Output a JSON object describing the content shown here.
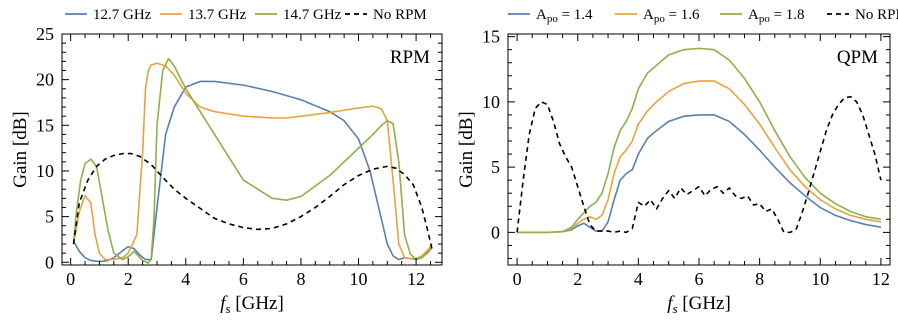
{
  "chart_data": [
    {
      "type": "line",
      "panel_label": "RPM",
      "xlabel_symbol": "f",
      "xlabel_sub": "s",
      "xlabel_unit": " [GHz]",
      "ylabel": "Gain [dB]",
      "xlim": [
        -0.3,
        12.9
      ],
      "ylim": [
        -0.3,
        25
      ],
      "xticks": [
        0,
        2,
        4,
        6,
        8,
        10,
        12
      ],
      "yticks": [
        0,
        5,
        10,
        15,
        20,
        25
      ],
      "legend_position": "top",
      "series": [
        {
          "name": "12.7 GHz",
          "color": "#5a7fb2",
          "dash": "",
          "x": [
            0.1,
            0.3,
            0.5,
            0.7,
            0.9,
            1.1,
            1.3,
            1.5,
            1.7,
            1.9,
            2.0,
            2.2,
            2.4,
            2.6,
            2.8,
            3.0,
            3.3,
            3.6,
            4.0,
            4.5,
            5,
            6,
            7,
            8,
            9,
            9.5,
            10,
            10.4,
            10.7,
            11.0,
            11.2,
            11.4,
            11.6,
            11.8,
            12.0,
            12.2,
            12.4,
            12.55
          ],
          "y": [
            2.3,
            1.2,
            0.5,
            0.2,
            0.1,
            0.1,
            0.2,
            0.5,
            1.0,
            1.5,
            1.7,
            1.5,
            0.8,
            0.3,
            0.3,
            6,
            14,
            17,
            19.2,
            19.8,
            19.8,
            19.4,
            18.7,
            17.8,
            16.5,
            15.5,
            13.5,
            10,
            6,
            2,
            0.7,
            0.3,
            0.5,
            0.4,
            0.3,
            0.5,
            1.2,
            2.0
          ]
        },
        {
          "name": "13.7 GHz",
          "color": "#e8a43c",
          "dash": "",
          "x": [
            0.1,
            0.3,
            0.5,
            0.7,
            0.85,
            1.0,
            1.2,
            1.5,
            1.8,
            2.0,
            2.3,
            2.5,
            2.6,
            2.7,
            2.8,
            3.0,
            3.3,
            3.6,
            4.0,
            4.5,
            5,
            6,
            7,
            7.5,
            8,
            9,
            10,
            10.5,
            10.8,
            11.0,
            11.2,
            11.4,
            11.6,
            11.8,
            12.0,
            12.2,
            12.4,
            12.55
          ],
          "y": [
            2.0,
            5.5,
            7.3,
            6.5,
            3.0,
            1.0,
            0.3,
            0.3,
            0.5,
            1.0,
            3.0,
            12,
            19,
            21,
            21.6,
            21.8,
            21.5,
            20.5,
            18.5,
            17,
            16.5,
            16,
            15.8,
            15.8,
            16,
            16.4,
            16.9,
            17.1,
            16.8,
            15.5,
            9,
            2,
            0.5,
            0.4,
            0.4,
            0.7,
            1.3,
            2.0
          ]
        },
        {
          "name": "14.7 GHz",
          "color": "#8fb04a",
          "dash": "",
          "x": [
            0.1,
            0.2,
            0.35,
            0.5,
            0.7,
            0.9,
            1.1,
            1.3,
            1.5,
            1.8,
            2.0,
            2.2,
            2.5,
            2.7,
            2.8,
            2.9,
            3.0,
            3.2,
            3.4,
            3.6,
            4,
            5,
            6,
            7,
            7.5,
            8,
            9,
            10,
            10.5,
            10.8,
            11.0,
            11.2,
            11.4,
            11.6,
            11.8,
            12.0,
            12.2,
            12.4,
            12.55
          ],
          "y": [
            2.0,
            5.5,
            9.0,
            10.8,
            11.3,
            10.5,
            7.0,
            3.5,
            1.0,
            0.3,
            0.6,
            1.2,
            0.2,
            -0.1,
            0.5,
            5,
            15,
            21,
            22.3,
            21.5,
            19,
            14,
            9,
            7,
            6.8,
            7.2,
            9.5,
            12.5,
            14,
            15,
            15.5,
            15.2,
            11,
            3,
            0.9,
            0.3,
            0.5,
            1.0,
            1.6
          ]
        },
        {
          "name": "No RPM",
          "color": "#000000",
          "dash": "5,4",
          "x": [
            0.1,
            0.3,
            0.6,
            0.9,
            1.2,
            1.5,
            1.8,
            2.1,
            2.4,
            2.8,
            3.2,
            3.6,
            4,
            4.5,
            5,
            5.5,
            6,
            6.5,
            7,
            7.5,
            8,
            8.5,
            9,
            9.5,
            10,
            10.5,
            11,
            11.3,
            11.6,
            11.9,
            12.2,
            12.4,
            12.55
          ],
          "y": [
            2.0,
            6.5,
            9.0,
            10.5,
            11.3,
            11.7,
            11.9,
            11.9,
            11.6,
            10.7,
            9.3,
            8.0,
            7.0,
            5.9,
            4.8,
            4.2,
            3.8,
            3.6,
            3.7,
            4.2,
            5.0,
            6.0,
            7.2,
            8.5,
            9.5,
            10.2,
            10.5,
            10.3,
            9.6,
            8.5,
            6,
            3.5,
            1.5
          ]
        }
      ]
    },
    {
      "type": "line",
      "panel_label": "QPM",
      "xlabel_symbol": "f",
      "xlabel_sub": "s",
      "xlabel_unit": " [GHz]",
      "ylabel": "Gain [dB]",
      "xlim": [
        -0.3,
        12.3
      ],
      "ylim": [
        -2.5,
        15.2
      ],
      "xticks": [
        0,
        2,
        4,
        6,
        8,
        10,
        12
      ],
      "yticks": [
        0,
        5,
        10,
        15
      ],
      "legend_position": "top",
      "series": [
        {
          "name": "A",
          "name_sub": "po",
          "name_rest": " = 1.4",
          "color": "#5a7fb2",
          "dash": "",
          "x": [
            0,
            0.5,
            1,
            1.5,
            1.8,
            2,
            2.2,
            2.4,
            2.6,
            2.8,
            3,
            3.2,
            3.4,
            3.6,
            3.8,
            4,
            4.3,
            4.6,
            5,
            5.5,
            6,
            6.5,
            7,
            7.5,
            8,
            8.5,
            9,
            9.5,
            10,
            10.5,
            11,
            11.5,
            12
          ],
          "y": [
            0,
            0,
            0,
            0.05,
            0.2,
            0.5,
            0.7,
            0.4,
            0.1,
            0.1,
            0.8,
            2.5,
            4.0,
            4.5,
            4.8,
            6.0,
            7.2,
            7.8,
            8.5,
            8.9,
            9.0,
            9.0,
            8.5,
            7.5,
            6.3,
            5,
            3.8,
            2.8,
            1.9,
            1.3,
            0.9,
            0.6,
            0.4
          ]
        },
        {
          "name": "A",
          "name_sub": "po",
          "name_rest": " = 1.6",
          "color": "#e8a43c",
          "dash": "",
          "x": [
            0,
            0.5,
            1,
            1.5,
            1.8,
            2,
            2.2,
            2.4,
            2.6,
            2.8,
            3,
            3.2,
            3.4,
            3.6,
            3.8,
            4,
            4.3,
            4.6,
            5,
            5.5,
            6,
            6.5,
            7,
            7.5,
            8,
            8.5,
            9,
            9.5,
            10,
            10.5,
            11,
            11.5,
            12
          ],
          "y": [
            0,
            0,
            0,
            0.05,
            0.3,
            0.7,
            1.0,
            1.2,
            1.0,
            1.3,
            2.5,
            4.5,
            5.8,
            6.3,
            7.0,
            8.3,
            9.3,
            10.0,
            10.8,
            11.4,
            11.6,
            11.6,
            11.0,
            9.8,
            8.3,
            6.5,
            4.8,
            3.5,
            2.5,
            1.8,
            1.3,
            1.0,
            0.8
          ]
        },
        {
          "name": "A",
          "name_sub": "po",
          "name_rest": " = 1.8",
          "color": "#8fb04a",
          "dash": "",
          "x": [
            0,
            0.5,
            1,
            1.5,
            1.8,
            2,
            2.2,
            2.4,
            2.6,
            2.8,
            3,
            3.2,
            3.4,
            3.6,
            3.8,
            4,
            4.3,
            4.6,
            5,
            5.5,
            6,
            6.5,
            7,
            7.5,
            8,
            8.5,
            9,
            9.5,
            10,
            10.5,
            11,
            11.5,
            12
          ],
          "y": [
            0,
            0,
            0,
            0.05,
            0.4,
            1.0,
            1.5,
            2.0,
            2.3,
            3.0,
            4.5,
            6.5,
            7.8,
            8.5,
            9.5,
            11.0,
            12.2,
            12.8,
            13.6,
            14.0,
            14.1,
            14.0,
            13.2,
            11.8,
            10.0,
            7.8,
            5.8,
            4.2,
            3.0,
            2.2,
            1.6,
            1.2,
            1.0
          ]
        },
        {
          "name": "No RPM",
          "name_sub": "",
          "name_rest": "",
          "color": "#000000",
          "dash": "5,4",
          "x": [
            0,
            0.2,
            0.4,
            0.6,
            0.8,
            1.0,
            1.2,
            1.4,
            1.6,
            1.8,
            2.0,
            2.2,
            2.4,
            2.6,
            2.8,
            3.0,
            3.2,
            3.4,
            3.6,
            3.8,
            4.0,
            4.2,
            4.4,
            4.6,
            4.8,
            5.0,
            5.2,
            5.4,
            5.6,
            5.8,
            6.0,
            6.2,
            6.4,
            6.6,
            6.8,
            7.0,
            7.2,
            7.4,
            7.6,
            7.8,
            8.0,
            8.2,
            8.4,
            8.6,
            8.8,
            9.0,
            9.2,
            9.4,
            9.6,
            9.8,
            10.0,
            10.2,
            10.4,
            10.6,
            10.8,
            11.0,
            11.2,
            11.4,
            11.6,
            11.8,
            12.0
          ],
          "y": [
            0,
            4.0,
            7.5,
            9.5,
            10.0,
            9.8,
            8.5,
            6.8,
            5.8,
            5.0,
            3.5,
            2.0,
            0.6,
            0.1,
            0.1,
            0.1,
            0.0,
            0.1,
            0.0,
            0.3,
            2.3,
            2.0,
            2.5,
            1.8,
            2.6,
            3.2,
            2.6,
            3.4,
            2.9,
            3.2,
            3.5,
            2.8,
            3.3,
            3.5,
            3.0,
            3.4,
            2.8,
            2.6,
            2.8,
            2.1,
            2.2,
            1.6,
            1.8,
            1.0,
            0.0,
            0.0,
            0.2,
            1.5,
            3.0,
            4.6,
            6.2,
            7.8,
            9.0,
            9.8,
            10.3,
            10.4,
            10.0,
            9.0,
            7.5,
            6.0,
            4.0
          ]
        }
      ]
    }
  ]
}
